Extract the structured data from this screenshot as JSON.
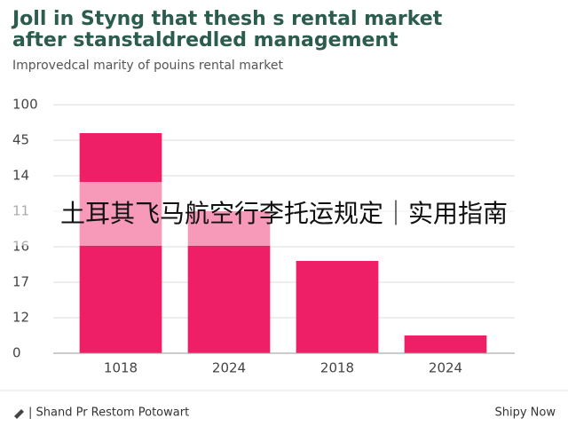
{
  "chart_data": {
    "type": "bar",
    "title": [
      "Joll in Styng that thesh s rental market",
      "after stanstaldredled management"
    ],
    "subtitle": "Improvedcal marity of pouins rental market",
    "categories": [
      "1018",
      "2024",
      "2018",
      "2024"
    ],
    "values": [
      6.2,
      4,
      2.6,
      0.5
    ],
    "color": "#ee1f66",
    "ylim": [
      0,
      7
    ],
    "yticks": [
      0,
      {
        "value": 1,
        "label": "12"
      },
      {
        "value": 2,
        "label": "17"
      },
      {
        "value": 3,
        "label": "16"
      },
      {
        "value": 4,
        "label": "11"
      },
      {
        "value": 5,
        "label": "14"
      },
      {
        "value": 6,
        "label": "45"
      },
      {
        "value": 7,
        "label": "100"
      }
    ],
    "grid": true
  },
  "overlay": {
    "text": "土耳其飞马航空行李托运规定｜实用指南"
  },
  "footer": {
    "left": "| Shand Pr Restom Potowart",
    "right": "Shipy Now"
  }
}
